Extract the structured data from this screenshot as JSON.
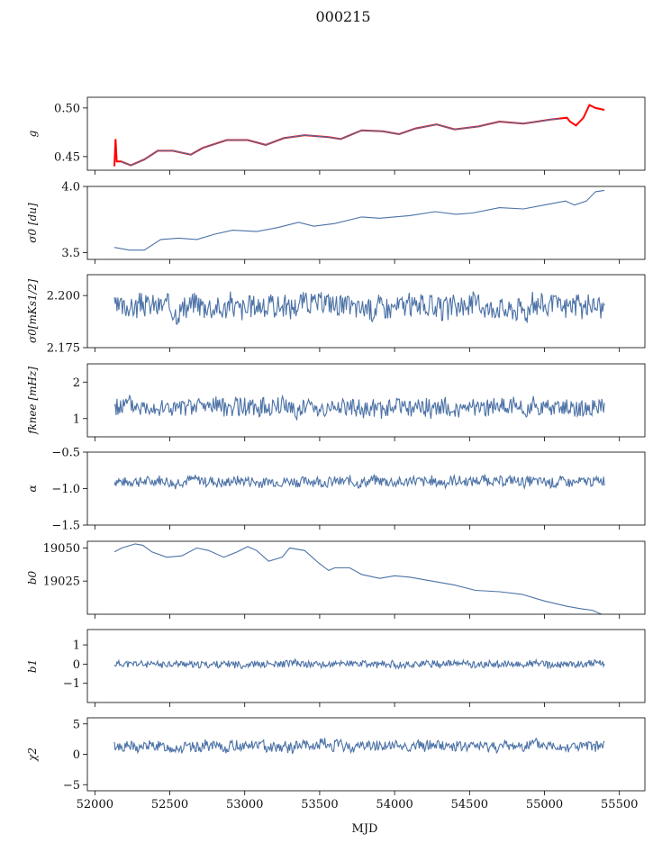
{
  "figure": {
    "title": "000215",
    "xlabel": "MJD"
  },
  "chart_data": {
    "type": "line",
    "xlim": [
      51950,
      55670
    ],
    "x_ticks": [
      52000,
      52500,
      53000,
      53500,
      54000,
      54500,
      55000,
      55500
    ],
    "x_range_data": [
      52130,
      55400
    ],
    "grid": false,
    "legend": "none",
    "panels": [
      {
        "ylabel": "g",
        "ylim": [
          0.436,
          0.511
        ],
        "y_ticks": [
          0.45,
          0.5
        ],
        "y_tick_labels": [
          "0.45",
          "0.50"
        ],
        "series": [
          {
            "color": "#ff0000",
            "points": [
              [
                52130,
                0.44
              ],
              [
                52138,
                0.468
              ],
              [
                52146,
                0.445
              ],
              [
                52175,
                0.445
              ],
              [
                52240,
                0.441
              ],
              [
                52330,
                0.447
              ],
              [
                52420,
                0.456
              ],
              [
                52520,
                0.456
              ],
              [
                52640,
                0.452
              ],
              [
                52720,
                0.459
              ],
              [
                52880,
                0.467
              ],
              [
                53020,
                0.467
              ],
              [
                53140,
                0.462
              ],
              [
                53260,
                0.469
              ],
              [
                53400,
                0.472
              ],
              [
                53560,
                0.47
              ],
              [
                53640,
                0.468
              ],
              [
                53780,
                0.477
              ],
              [
                53920,
                0.476
              ],
              [
                54030,
                0.473
              ],
              [
                54140,
                0.479
              ],
              [
                54280,
                0.483
              ],
              [
                54400,
                0.478
              ],
              [
                54560,
                0.481
              ],
              [
                54700,
                0.486
              ],
              [
                54860,
                0.484
              ],
              [
                55040,
                0.488
              ],
              [
                55150,
                0.49
              ],
              [
                55170,
                0.486
              ],
              [
                55210,
                0.482
              ],
              [
                55260,
                0.49
              ],
              [
                55300,
                0.503
              ],
              [
                55340,
                0.5
              ],
              [
                55400,
                0.498
              ]
            ]
          },
          {
            "color": "#4c72a6",
            "points": [
              [
                52175,
                0.445
              ],
              [
                52240,
                0.441
              ],
              [
                52330,
                0.447
              ],
              [
                52420,
                0.456
              ],
              [
                52520,
                0.456
              ],
              [
                52640,
                0.452
              ],
              [
                52720,
                0.459
              ],
              [
                52880,
                0.467
              ],
              [
                53020,
                0.467
              ],
              [
                53140,
                0.462
              ],
              [
                53260,
                0.469
              ],
              [
                53400,
                0.472
              ],
              [
                53560,
                0.47
              ],
              [
                53640,
                0.468
              ],
              [
                53780,
                0.477
              ],
              [
                53920,
                0.476
              ],
              [
                54030,
                0.473
              ],
              [
                54140,
                0.479
              ],
              [
                54280,
                0.483
              ],
              [
                54400,
                0.478
              ],
              [
                54560,
                0.481
              ],
              [
                54700,
                0.486
              ],
              [
                54860,
                0.484
              ],
              [
                55040,
                0.488
              ],
              [
                55100,
                0.489
              ]
            ]
          }
        ]
      },
      {
        "ylabel": "σ0 [du]",
        "ylim": [
          3.45,
          4.0
        ],
        "y_ticks": [
          3.5,
          4.0
        ],
        "y_tick_labels": [
          "3.5",
          "4.0"
        ],
        "series": [
          {
            "color": "#4c72a6",
            "points": [
              [
                52130,
                3.54
              ],
              [
                52230,
                3.52
              ],
              [
                52330,
                3.52
              ],
              [
                52440,
                3.6
              ],
              [
                52560,
                3.61
              ],
              [
                52680,
                3.6
              ],
              [
                52800,
                3.64
              ],
              [
                52920,
                3.67
              ],
              [
                53080,
                3.66
              ],
              [
                53220,
                3.69
              ],
              [
                53360,
                3.73
              ],
              [
                53460,
                3.7
              ],
              [
                53600,
                3.72
              ],
              [
                53780,
                3.77
              ],
              [
                53900,
                3.76
              ],
              [
                54100,
                3.78
              ],
              [
                54270,
                3.81
              ],
              [
                54410,
                3.79
              ],
              [
                54520,
                3.8
              ],
              [
                54700,
                3.84
              ],
              [
                54860,
                3.83
              ],
              [
                55000,
                3.86
              ],
              [
                55140,
                3.89
              ],
              [
                55200,
                3.86
              ],
              [
                55280,
                3.89
              ],
              [
                55340,
                3.96
              ],
              [
                55400,
                3.97
              ]
            ]
          }
        ]
      },
      {
        "ylabel": "σ0[mKs1/2]",
        "ylim": [
          2.175,
          2.21
        ],
        "y_ticks": [
          2.175,
          2.2
        ],
        "y_tick_labels": [
          "2.175",
          "2.200"
        ],
        "series": [
          {
            "color": "#4c72a6",
            "generated": {
              "baseline": 2.195,
              "amplitude": 0.0055,
              "seed": 3
            }
          }
        ]
      },
      {
        "ylabel": "fknee [mHz]",
        "ylim": [
          0.5,
          2.5
        ],
        "y_ticks": [
          1,
          2
        ],
        "y_tick_labels": [
          "1",
          "2"
        ],
        "series": [
          {
            "color": "#4c72a6",
            "generated": {
              "baseline": 1.3,
              "amplitude": 0.25,
              "seed": 5
            }
          }
        ]
      },
      {
        "ylabel": "α",
        "ylim": [
          -1.5,
          -0.5
        ],
        "y_ticks": [
          -1.5,
          -1.0,
          -0.5
        ],
        "y_tick_labels": [
          "−1.5",
          "−1.0",
          "−0.5"
        ],
        "series": [
          {
            "color": "#4c72a6",
            "generated": {
              "baseline": -0.9,
              "amplitude": 0.07,
              "seed": 7
            }
          }
        ]
      },
      {
        "ylabel": "b0",
        "ylim": [
          19000,
          19055
        ],
        "y_ticks": [
          19025,
          19050
        ],
        "y_tick_labels": [
          "19025",
          "19050"
        ],
        "series": [
          {
            "color": "#4c72a6",
            "points": [
              [
                52130,
                19047
              ],
              [
                52180,
                19050
              ],
              [
                52270,
                19053
              ],
              [
                52320,
                19052
              ],
              [
                52380,
                19047
              ],
              [
                52480,
                19043
              ],
              [
                52580,
                19044
              ],
              [
                52680,
                19050
              ],
              [
                52760,
                19048
              ],
              [
                52860,
                19043
              ],
              [
                52950,
                19047
              ],
              [
                53020,
                19051
              ],
              [
                53080,
                19048
              ],
              [
                53160,
                19040
              ],
              [
                53250,
                19043
              ],
              [
                53300,
                19050
              ],
              [
                53400,
                19048
              ],
              [
                53500,
                19038
              ],
              [
                53560,
                19033
              ],
              [
                53600,
                19035
              ],
              [
                53700,
                19035
              ],
              [
                53780,
                19030
              ],
              [
                53900,
                19027
              ],
              [
                54000,
                19029
              ],
              [
                54100,
                19028
              ],
              [
                54250,
                19025
              ],
              [
                54400,
                19022
              ],
              [
                54540,
                19018
              ],
              [
                54700,
                19017
              ],
              [
                54850,
                19015
              ],
              [
                55000,
                19010
              ],
              [
                55150,
                19006
              ],
              [
                55250,
                19004
              ],
              [
                55320,
                19003
              ],
              [
                55400,
                18999
              ]
            ]
          }
        ]
      },
      {
        "ylabel": "b1",
        "ylim": [
          -2.0,
          1.8
        ],
        "y_ticks": [
          -1,
          0,
          1
        ],
        "y_tick_labels": [
          "−1",
          "0",
          "1"
        ],
        "series": [
          {
            "color": "#4c72a6",
            "generated": {
              "baseline": 0,
              "amplitude": 0.18,
              "seed": 11
            }
          }
        ]
      },
      {
        "ylabel": "χ2",
        "ylim": [
          -6,
          6
        ],
        "y_ticks": [
          -5,
          0,
          5
        ],
        "y_tick_labels": [
          "−5",
          "0",
          "5"
        ],
        "series": [
          {
            "color": "#4c72a6",
            "generated": {
              "baseline": 1.3,
              "amplitude": 0.9,
              "seed": 13
            }
          }
        ]
      }
    ]
  }
}
